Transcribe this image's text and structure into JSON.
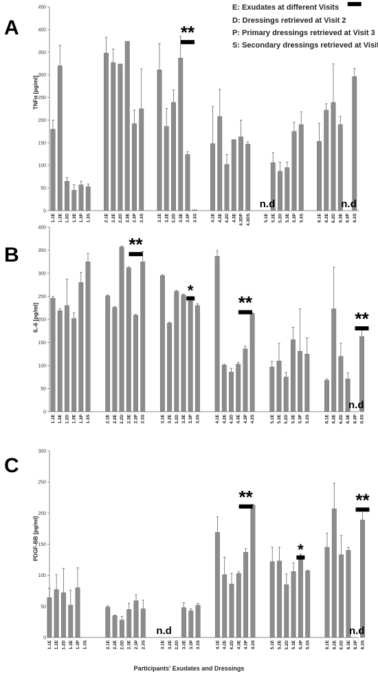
{
  "legend": [
    "E: Exudates at different Visits",
    "D: Dressings retrieved at Visit 2",
    "P: Primary dressings retrieved at Visit 3",
    "S: Secondary dressings retrieved at Visit 3"
  ],
  "x_axis_label": "Participants' Exudates and Dressings",
  "colors": {
    "bar": "#8c8c8c",
    "bar_edge": "#6e6e6e",
    "axis": "#888888",
    "error": "#666666",
    "sig": "#000000"
  },
  "chart_data": [
    {
      "type": "bar",
      "panel": "A",
      "ylabel": "TNFα [pg/ml]",
      "ylim": [
        0,
        450
      ],
      "yticks": [
        0,
        50,
        100,
        150,
        200,
        250,
        300,
        350,
        400,
        450
      ],
      "groups": [
        {
          "categories": [
            "1.1E",
            "1.2E",
            "1.2D",
            "1.3E",
            "1.3P",
            "1.3S"
          ],
          "values": [
            180,
            320,
            65,
            45,
            57,
            53
          ],
          "errors": [
            20,
            45,
            8,
            12,
            8,
            6
          ]
        },
        {
          "categories": [
            "2.1E",
            "2.2E",
            "2.2D",
            "2.3E",
            "2.3P",
            "2.3S"
          ],
          "values": [
            348,
            327,
            324,
            374,
            192,
            225
          ],
          "errors": [
            35,
            30,
            0,
            0,
            30,
            88
          ]
        },
        {
          "categories": [
            "3.1E",
            "3.2E",
            "3.2D",
            "3.3E",
            "3.3P",
            "3.3S"
          ],
          "values": [
            311,
            186,
            239,
            337,
            124,
            2
          ],
          "errors": [
            58,
            40,
            28,
            48,
            6,
            0
          ]
        },
        {
          "categories": [
            "4.1E",
            "4.2E",
            "4.2D",
            "4.3E",
            "4.3DP",
            "4.3DS"
          ],
          "values": [
            148,
            208,
            102,
            157,
            163,
            147
          ],
          "errors": [
            82,
            60,
            22,
            0,
            37,
            5
          ]
        },
        {
          "categories": [
            "5.1E",
            "5.2E",
            "5.2D",
            "5.3E",
            "5.3P",
            "5.3S"
          ],
          "values": [
            0,
            106,
            87,
            95,
            175,
            190
          ],
          "errors": [
            0,
            22,
            20,
            12,
            20,
            28
          ]
        },
        {
          "categories": [
            "6.1E",
            "6.2E",
            "6.2D",
            "6.3E",
            "6.3P",
            "6.3S"
          ],
          "values": [
            153,
            222,
            239,
            190,
            0,
            296
          ],
          "errors": [
            40,
            14,
            85,
            18,
            0,
            18
          ]
        }
      ],
      "annotations": [
        {
          "text": "**",
          "category": "3.3P",
          "value": 392
        },
        {
          "text": "**",
          "category": "6.3S",
          "value": 476
        }
      ],
      "nd_labels": [
        {
          "text": "n.d",
          "category": "5.1E"
        },
        {
          "text": "n.d",
          "category": "6.3P"
        }
      ]
    },
    {
      "type": "bar",
      "panel": "B",
      "ylabel": "IL-6 [pg/ml]",
      "ylim": [
        0,
        400
      ],
      "yticks": [
        0,
        50,
        100,
        150,
        200,
        250,
        300,
        350,
        400
      ],
      "groups": [
        {
          "categories": [
            "1.1E",
            "1.2E",
            "1.2D",
            "1.3E",
            "1.3P",
            "1.3S"
          ],
          "values": [
            246,
            219,
            230,
            202,
            280,
            325
          ],
          "errors": [
            4,
            4,
            57,
            12,
            22,
            18
          ]
        },
        {
          "categories": [
            "2.1E",
            "2.2E",
            "2.2D",
            "2.3E",
            "2.3P",
            "2.3S"
          ],
          "values": [
            251,
            226,
            357,
            312,
            209,
            325
          ],
          "errors": [
            2,
            2,
            2,
            2,
            2,
            22
          ]
        },
        {
          "categories": [
            "3.1E",
            "3.2E",
            "3.2D",
            "3.3E",
            "3.3P",
            "3.3S"
          ],
          "values": [
            295,
            192,
            261,
            253,
            240,
            230
          ],
          "errors": [
            2,
            2,
            2,
            2,
            2,
            4
          ]
        },
        {
          "categories": [
            "4.1E",
            "4.2E",
            "4.2D",
            "4.3E",
            "4.3P",
            "4.3S"
          ],
          "values": [
            337,
            101,
            86,
            103,
            136,
            213
          ],
          "errors": [
            12,
            2,
            8,
            4,
            6,
            2
          ]
        },
        {
          "categories": [
            "5.1E",
            "5.2E",
            "5.2D",
            "5.3E",
            "5.3P",
            "5.3S"
          ],
          "values": [
            97,
            110,
            75,
            156,
            131,
            125
          ],
          "errors": [
            12,
            38,
            10,
            27,
            92,
            35
          ]
        },
        {
          "categories": [
            "6.1E",
            "6.2E",
            "6.2D",
            "6.3E",
            "6.3P",
            "6.3S"
          ],
          "values": [
            68,
            223,
            120,
            71,
            0,
            163
          ],
          "errors": [
            3,
            90,
            28,
            13,
            0,
            20
          ]
        }
      ],
      "annotations": [
        {
          "text": "**",
          "category": "2.3P",
          "value": 361
        },
        {
          "text": "*",
          "category": "3.3P",
          "value": 265
        },
        {
          "text": "**",
          "category": "4.3P",
          "value": 235
        },
        {
          "text": "**",
          "category": "6.3S",
          "value": 200
        }
      ],
      "nd_labels": [
        {
          "text": "n.d",
          "category": "6.3P"
        }
      ]
    },
    {
      "type": "bar",
      "panel": "C",
      "ylabel": "PDGF-BB [pg/ml]",
      "ylim": [
        0,
        300
      ],
      "yticks": [
        0,
        50,
        100,
        150,
        200,
        250,
        300
      ],
      "groups": [
        {
          "categories": [
            "1.1E",
            "1.2E",
            "1.2D",
            "1.3E",
            "1.3P",
            "1.3S"
          ],
          "values": [
            64,
            77,
            72,
            52,
            80,
            0
          ],
          "errors": [
            15,
            24,
            39,
            24,
            32,
            0
          ],
          "shift": -0.5
        },
        {
          "categories": [
            "2.1E",
            "2.2E",
            "2.2D",
            "2.3E",
            "2.3P",
            "2.3S"
          ],
          "values": [
            49,
            35,
            28,
            45,
            59,
            46
          ],
          "errors": [
            2,
            1,
            6,
            10,
            10,
            14
          ]
        },
        {
          "categories": [
            "3.1E",
            "3.2E",
            "3.2D",
            "3.3E",
            "3.3P",
            "3.3S"
          ],
          "values": [
            0,
            0,
            0,
            48,
            43,
            52
          ],
          "errors": [
            0,
            0,
            0,
            8,
            3,
            3
          ]
        },
        {
          "categories": [
            "4.1E",
            "4.2E",
            "4.2D",
            "4.3E",
            "4.3P",
            "4.3S"
          ],
          "values": [
            169,
            101,
            86,
            103,
            137,
            213
          ],
          "errors": [
            25,
            28,
            17,
            3,
            6,
            1
          ]
        },
        {
          "categories": [
            "5.1E",
            "5.2E",
            "5.2D",
            "5.3E",
            "5.3P",
            "5.3S"
          ],
          "values": [
            122,
            123,
            85,
            106,
            130,
            107
          ],
          "errors": [
            23,
            22,
            17,
            14,
            4,
            1
          ]
        },
        {
          "categories": [
            "6.1E",
            "6.2E",
            "6.2D",
            "6.3E",
            "6.3P",
            "6.3S"
          ],
          "values": [
            145,
            207,
            133,
            140,
            0,
            189
          ],
          "errors": [
            23,
            41,
            31,
            5,
            0,
            18
          ]
        }
      ],
      "annotations": [
        {
          "text": "**",
          "category": "4.3P",
          "value": 225
        },
        {
          "text": "*",
          "category": "5.3P",
          "value": 143
        },
        {
          "text": "**",
          "category": "6.3S",
          "value": 220
        }
      ],
      "nd_labels": [
        {
          "text": "n.d",
          "category": "3.1E"
        },
        {
          "text": "n.d",
          "category": "6.3P"
        }
      ]
    }
  ]
}
